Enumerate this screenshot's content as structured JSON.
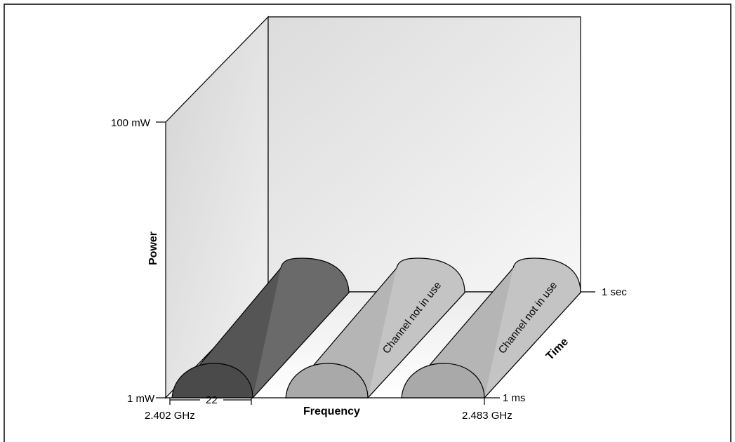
{
  "diagram": {
    "axis_labels": {
      "power": "Power",
      "frequency": "Frequency",
      "time": "Time"
    },
    "power_ticks": {
      "high": "100 mW",
      "low": "1 mW"
    },
    "time_ticks": {
      "end": "1 sec",
      "start": "1 ms"
    },
    "frequency_ticks": {
      "start": "2.402 GHz",
      "end": "2.483 GHz",
      "bandwidth": "22"
    },
    "channels": [
      {
        "label": "",
        "state": "in use",
        "color": "#5a5a5a"
      },
      {
        "label": "Channel not in use",
        "state": "not in use",
        "color": "#b8b8b8"
      },
      {
        "label": "Channel not in use",
        "state": "not in use",
        "color": "#b8b8b8"
      }
    ]
  }
}
